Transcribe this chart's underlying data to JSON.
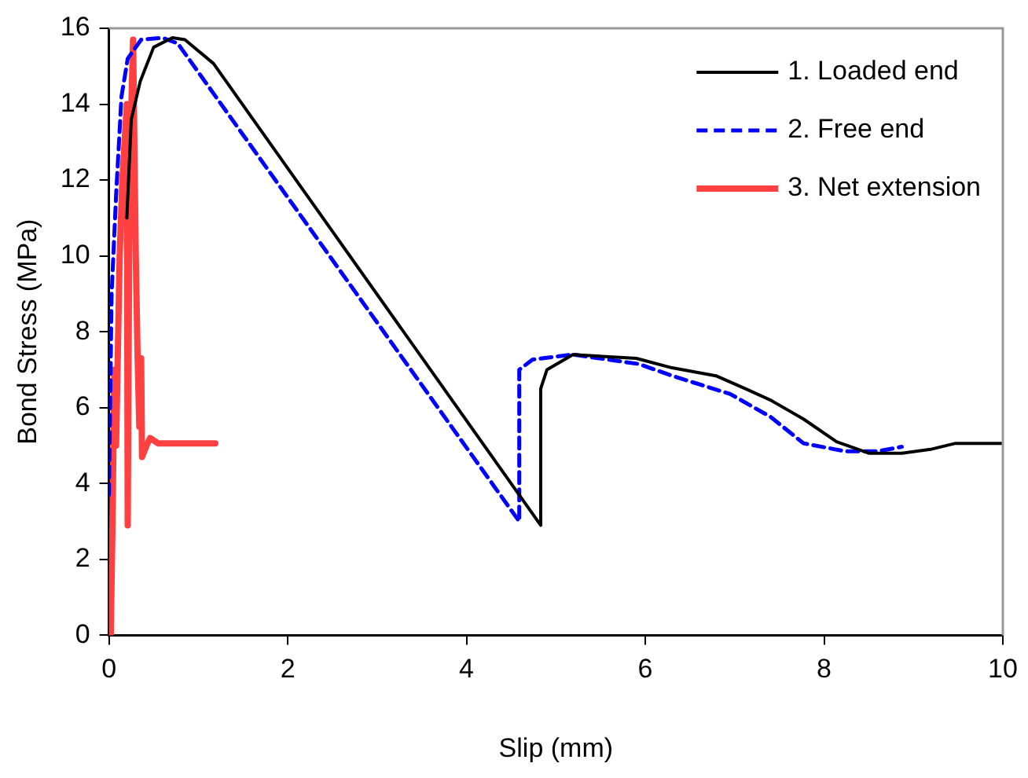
{
  "chart_data": {
    "type": "line",
    "xlabel": "Slip (mm)",
    "ylabel": "Bond Stress (MPa)",
    "xlim": [
      0,
      10
    ],
    "xticks": [
      0,
      2,
      4,
      6,
      8,
      10
    ],
    "ylim": [
      0,
      16
    ],
    "yticks": [
      0,
      2,
      4,
      6,
      8,
      10,
      12,
      14,
      16
    ],
    "grid": false,
    "legend": "top right",
    "marker": "none",
    "series": [
      {
        "name": "1. Loaded end",
        "color": "#000000",
        "line_style": "solid",
        "x": [
          0.2,
          0.25,
          0.35,
          0.5,
          0.71,
          0.85,
          1.17,
          4.83,
          4.83,
          4.9,
          5.19,
          5.9,
          6.3,
          6.79,
          7.12,
          7.4,
          7.77,
          8.14,
          8.5,
          8.87,
          9.19,
          9.47,
          10
        ],
        "values": [
          11.0,
          13.6,
          14.6,
          15.5,
          15.75,
          15.7,
          15.07,
          2.9,
          6.5,
          7.0,
          7.4,
          7.3,
          7.05,
          6.84,
          6.5,
          6.2,
          5.7,
          5.1,
          4.8,
          4.8,
          4.9,
          5.06,
          5.06
        ]
      },
      {
        "name": "2. Free end",
        "color": "#0000ff",
        "line_style": "dashed",
        "x": [
          0,
          0.03,
          0.08,
          0.14,
          0.21,
          0.36,
          0.6,
          0.77,
          4.59,
          4.59,
          4.74,
          5.19,
          5.93,
          6.3,
          6.95,
          7.4,
          7.77,
          8.24,
          8.6,
          8.87
        ],
        "values": [
          3.7,
          9.0,
          11.6,
          14.2,
          15.2,
          15.7,
          15.75,
          15.6,
          3.0,
          7.0,
          7.27,
          7.4,
          7.15,
          6.84,
          6.36,
          5.76,
          5.06,
          4.85,
          4.85,
          4.97
        ]
      },
      {
        "name": "3. Net extension",
        "color": "#ff4040",
        "line_style": "solid",
        "x": [
          0.02,
          0.04,
          0.06,
          0.08,
          0.12,
          0.15,
          0.2,
          0.21,
          0.23,
          0.27,
          0.3,
          0.32,
          0.34,
          0.36,
          0.37,
          0.42,
          0.46,
          0.55,
          1.19
        ],
        "values": [
          0,
          3,
          7,
          5,
          10,
          12,
          14,
          2.9,
          12,
          15.7,
          10,
          7.4,
          5.5,
          7.3,
          4.7,
          5,
          5.2,
          5.06,
          5.06
        ]
      }
    ]
  }
}
